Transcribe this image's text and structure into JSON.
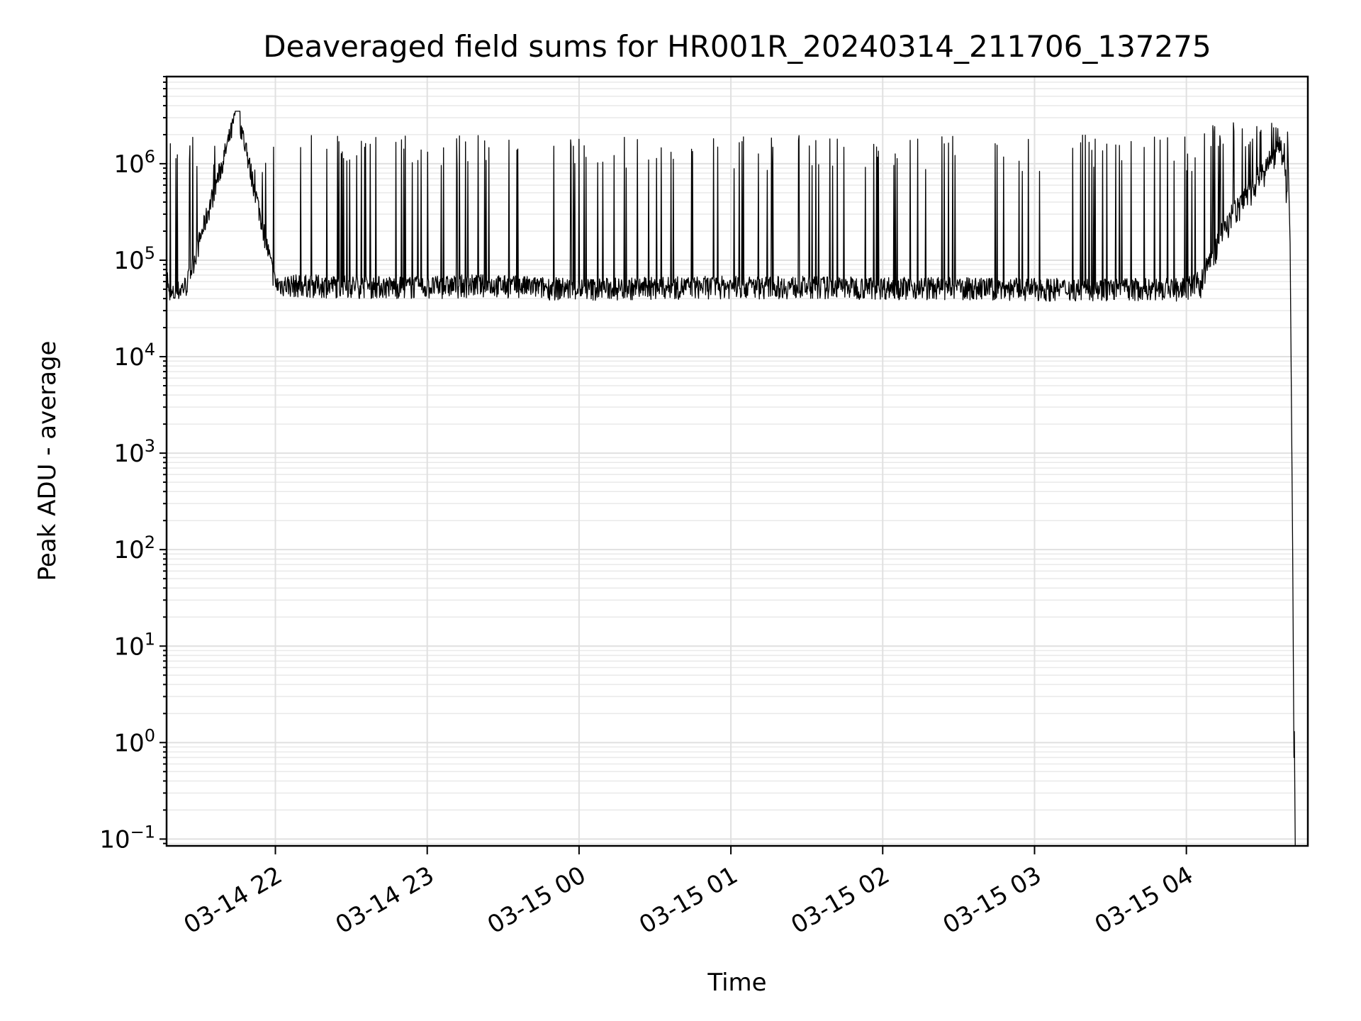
{
  "chart_data": {
    "type": "line",
    "title": "Deaveraged field sums for HR001R_20240314_211706_137275",
    "xlabel": "Time",
    "ylabel": "Peak ADU - average",
    "yscale": "log",
    "ylim": [
      0.085,
      8000000
    ],
    "xlim": [
      "2024-03-14 21:17",
      "2024-03-15 04:48"
    ],
    "grid": true,
    "x_ticks": [
      "03-14 22",
      "03-14 23",
      "03-15 00",
      "03-15 01",
      "03-15 02",
      "03-15 03",
      "03-15 04"
    ],
    "y_ticks": [
      {
        "base": "10",
        "exp": "−1",
        "value": 0.1
      },
      {
        "base": "10",
        "exp": "0",
        "value": 1
      },
      {
        "base": "10",
        "exp": "1",
        "value": 10
      },
      {
        "base": "10",
        "exp": "2",
        "value": 100
      },
      {
        "base": "10",
        "exp": "3",
        "value": 1000
      },
      {
        "base": "10",
        "exp": "4",
        "value": 10000
      },
      {
        "base": "10",
        "exp": "5",
        "value": 100000
      },
      {
        "base": "10",
        "exp": "6",
        "value": 1000000
      }
    ],
    "series": [
      {
        "color": "#000000",
        "points": [
          {
            "t": "2024-03-14 21:17",
            "y": 85000
          },
          {
            "t": "2024-03-14 21:18",
            "y": 40000
          },
          {
            "t": "2024-03-14 21:25",
            "y": 55000
          },
          {
            "t": "2024-03-14 21:45",
            "y": 3500000
          },
          {
            "t": "2024-03-14 22:00",
            "y": 55000
          },
          {
            "t": "2024-03-14 23:00",
            "y": 52000
          },
          {
            "t": "2024-03-14 23:20",
            "y": 55000
          },
          {
            "t": "2024-03-15 00:00",
            "y": 50000
          },
          {
            "t": "2024-03-15 01:00",
            "y": 53000
          },
          {
            "t": "2024-03-15 02:00",
            "y": 52000
          },
          {
            "t": "2024-03-15 03:00",
            "y": 50000
          },
          {
            "t": "2024-03-15 04:00",
            "y": 50000
          },
          {
            "t": "2024-03-15 04:05",
            "y": 60000
          },
          {
            "t": "2024-03-15 04:10",
            "y": 120000
          },
          {
            "t": "2024-03-15 04:15",
            "y": 250000
          },
          {
            "t": "2024-03-15 04:22",
            "y": 450000
          },
          {
            "t": "2024-03-15 04:30",
            "y": 900000
          },
          {
            "t": "2024-03-15 04:37",
            "y": 1600000
          },
          {
            "t": "2024-03-15 04:39",
            "y": 1000000
          },
          {
            "t": "2024-03-15 04:41",
            "y": 150000
          },
          {
            "t": "2024-03-15 04:42",
            "y": 100
          },
          {
            "t": "2024-03-15 04:42:30",
            "y": 0.7
          },
          {
            "t": "2024-03-15 04:42:40",
            "y": 1.3
          },
          {
            "t": "2024-03-15 04:43",
            "y": 0.09
          }
        ],
        "spike_level_typical": 1800000,
        "baseline_range": [
          35000,
          80000
        ]
      }
    ]
  }
}
